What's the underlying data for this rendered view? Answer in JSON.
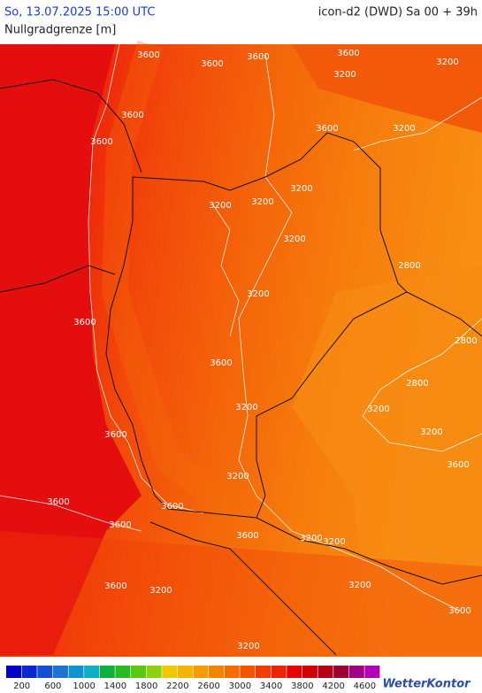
{
  "header": {
    "datetime": "So, 13.07.2025 15:00 UTC",
    "model": "icon-d2 (DWD) Sa 00 + 39h",
    "parameter": "Nullgradgrenze [m]"
  },
  "map": {
    "contour_labels": [
      3600,
      3600,
      3600,
      3600,
      3600,
      3600,
      3200,
      3200,
      3200,
      3600,
      3200,
      3200,
      3200,
      3200,
      2800,
      3600,
      3200,
      2800,
      2800,
      3200,
      3600,
      3200,
      3600,
      3600,
      3600,
      3600,
      3200,
      3200,
      3200,
      3600,
      3200,
      3200,
      3600,
      3200,
      3200,
      3600,
      3600
    ]
  },
  "legend": {
    "colors": [
      "#0000c8",
      "#0a28d2",
      "#1450d2",
      "#1c74d2",
      "#1094d0",
      "#10acc8",
      "#10b040",
      "#28bc20",
      "#58c810",
      "#8cd010",
      "#f0c800",
      "#f4b400",
      "#f49c00",
      "#f48400",
      "#f46c00",
      "#f25400",
      "#f03c00",
      "#ee2400",
      "#e80000",
      "#d00000",
      "#b40014",
      "#9c0030",
      "#a00080",
      "#b400b4"
    ],
    "labels": [
      200,
      600,
      1000,
      1400,
      1800,
      2200,
      2600,
      3000,
      3400,
      3800,
      4200,
      4600
    ]
  },
  "logo": "WetterKontor"
}
